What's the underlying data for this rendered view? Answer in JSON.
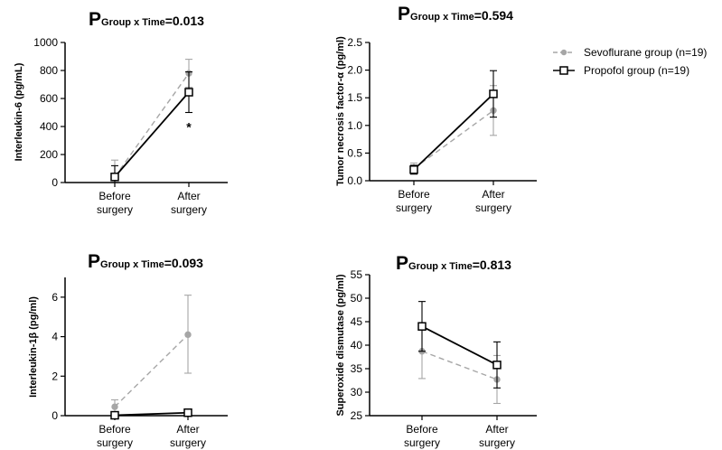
{
  "legend": [
    {
      "label": "Sevoflurane group (n=19)",
      "color": "#a6a6a6",
      "marker": "circle",
      "line": "dashed"
    },
    {
      "label": "Propofol group (n=19)",
      "color": "#000000",
      "marker": "square-open",
      "line": "solid"
    }
  ],
  "chart_data": [
    {
      "type": "line",
      "title": {
        "p": "P",
        "sub": "Group x Time",
        "val": "=0.013"
      },
      "ylabel": "Interleukin-6 (pg/mL)",
      "categories": [
        [
          "Before",
          "surgery"
        ],
        [
          "After",
          "surgery"
        ]
      ],
      "ylim": [
        0,
        1000
      ],
      "yticks": [
        0,
        200,
        400,
        600,
        800,
        1000
      ],
      "tick_labels": [
        "0",
        "200",
        "400",
        "600",
        "800",
        "1000"
      ],
      "series": [
        {
          "name": "Sevoflurane group (n=19)",
          "values": [
            40,
            780
          ],
          "err_low": [
            0,
            680
          ],
          "err_high": [
            160,
            880
          ]
        },
        {
          "name": "Propofol group (n=19)",
          "values": [
            40,
            645
          ],
          "err_low": [
            0,
            500
          ],
          "err_high": [
            120,
            790
          ]
        }
      ],
      "annotations": [
        {
          "text": "*",
          "category": 1,
          "y": 430
        }
      ]
    },
    {
      "type": "line",
      "title": {
        "p": "P",
        "sub": "Group x Time",
        "val": "=0.594"
      },
      "ylabel": "Tumor necrosis factor-α (pg/ml)",
      "categories": [
        [
          "Before",
          "surgery"
        ],
        [
          "After",
          "surgery"
        ]
      ],
      "ylim": [
        0,
        2.5
      ],
      "yticks": [
        0,
        0.5,
        1.0,
        1.5,
        2.0,
        2.5
      ],
      "tick_labels": [
        "0.0",
        "0.5",
        "1.0",
        "1.5",
        "2.0",
        "2.5"
      ],
      "series": [
        {
          "name": "Sevoflurane group (n=19)",
          "values": [
            0.22,
            1.27
          ],
          "err_low": [
            0.12,
            0.82
          ],
          "err_high": [
            0.32,
            1.72
          ]
        },
        {
          "name": "Propofol group (n=19)",
          "values": [
            0.2,
            1.57
          ],
          "err_low": [
            0.12,
            1.15
          ],
          "err_high": [
            0.28,
            1.99
          ]
        }
      ],
      "annotations": []
    },
    {
      "type": "line",
      "title": {
        "p": "P",
        "sub": "Group x Time",
        "val": "=0.093"
      },
      "ylabel": "Interleukin-1β (pg/ml)",
      "categories": [
        [
          "Before",
          "surgery"
        ],
        [
          "After",
          "surgery"
        ]
      ],
      "ylim": [
        0,
        7
      ],
      "yticks": [
        0,
        2,
        4,
        6
      ],
      "tick_labels": [
        "0",
        "2",
        "4",
        "6"
      ],
      "series": [
        {
          "name": "Sevoflurane group (n=19)",
          "values": [
            0.45,
            4.1
          ],
          "err_low": [
            0.1,
            2.15
          ],
          "err_high": [
            0.8,
            6.1
          ]
        },
        {
          "name": "Propofol group (n=19)",
          "values": [
            0.02,
            0.15
          ],
          "err_low": [
            0,
            0.05
          ],
          "err_high": [
            0.06,
            0.25
          ]
        }
      ],
      "annotations": []
    },
    {
      "type": "line",
      "title": {
        "p": "P",
        "sub": "Group x Time",
        "val": "=0.813"
      },
      "ylabel": "Superoxide dismutase (pg/ml)",
      "categories": [
        [
          "Before",
          "surgery"
        ],
        [
          "After",
          "surgery"
        ]
      ],
      "ylim": [
        25,
        55
      ],
      "yticks": [
        25,
        30,
        35,
        40,
        45,
        50,
        55
      ],
      "tick_labels": [
        "25",
        "30",
        "35",
        "40",
        "45",
        "50",
        "55"
      ],
      "series": [
        {
          "name": "Sevoflurane group (n=19)",
          "values": [
            38.7,
            32.7
          ],
          "err_low": [
            32.9,
            27.6
          ],
          "err_high": [
            44.5,
            37.8
          ]
        },
        {
          "name": "Propofol group (n=19)",
          "values": [
            44.0,
            35.8
          ],
          "err_low": [
            38.7,
            30.9
          ],
          "err_high": [
            49.3,
            40.7
          ]
        }
      ],
      "annotations": []
    }
  ]
}
